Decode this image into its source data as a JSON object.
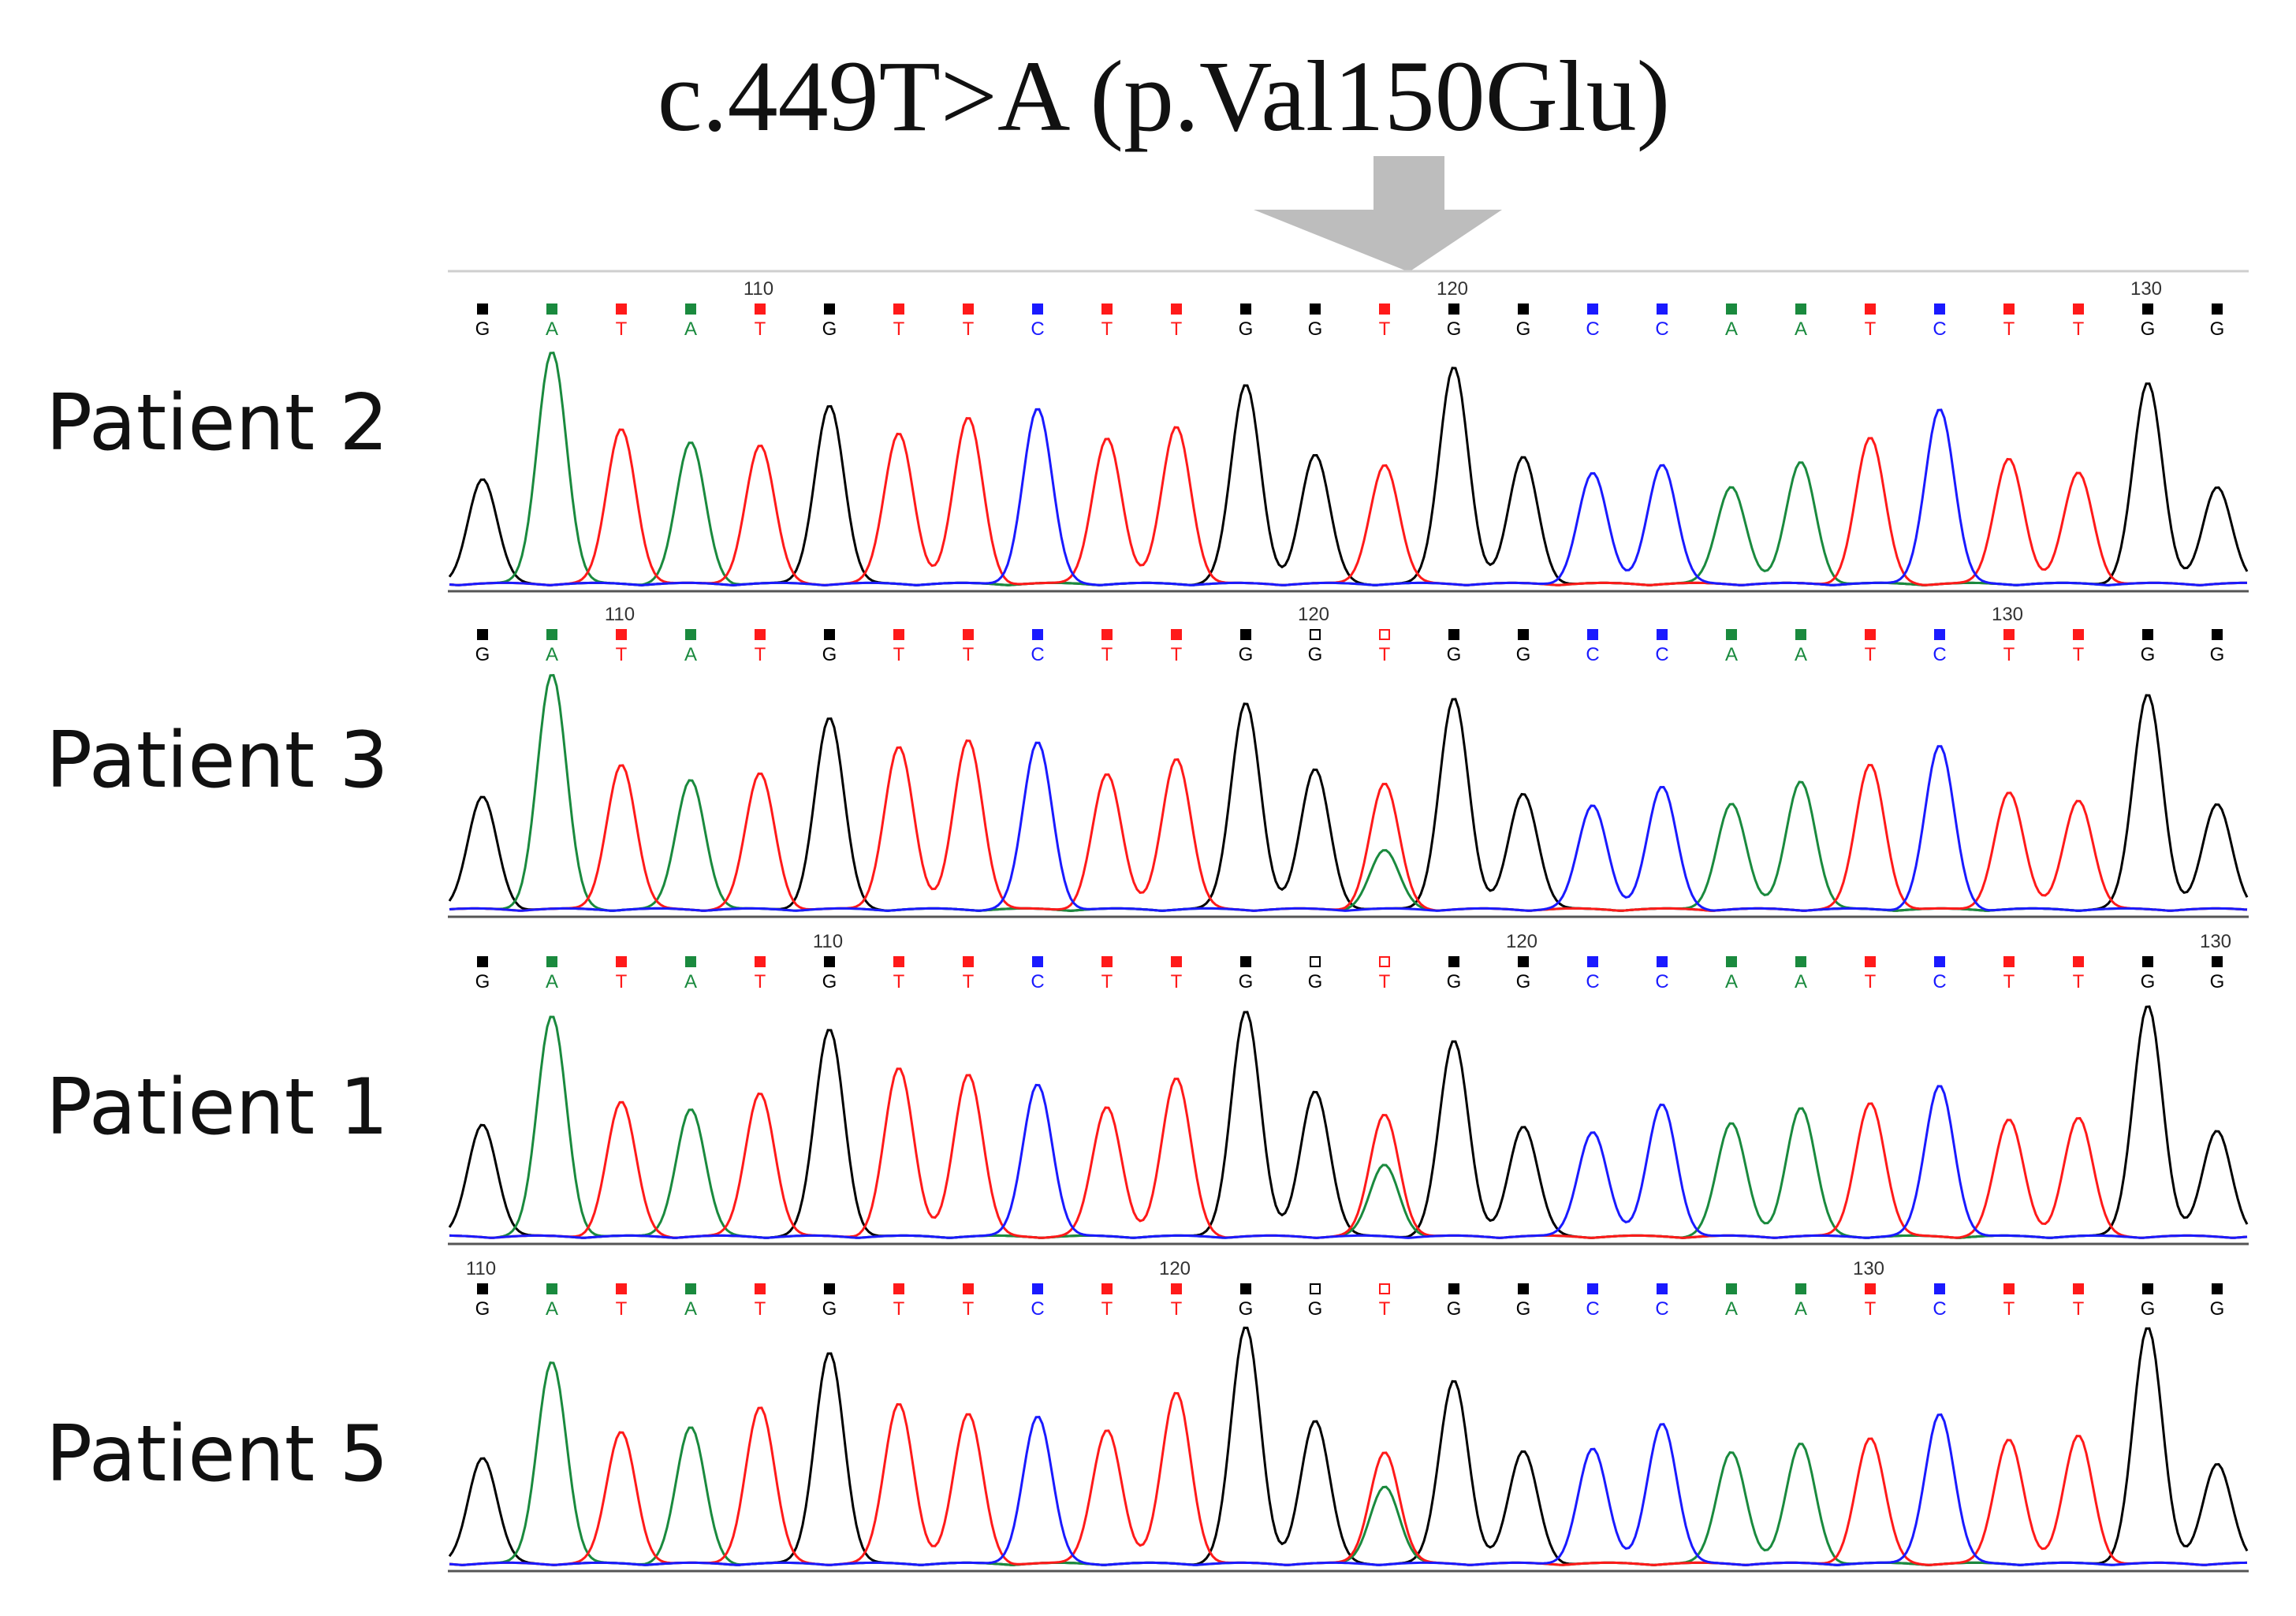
{
  "title": "c.449T>A (p.Val150Glu)",
  "sequence": [
    "G",
    "A",
    "T",
    "A",
    "T",
    "G",
    "T",
    "T",
    "C",
    "T",
    "T",
    "G",
    "G",
    "T",
    "G",
    "G",
    "C",
    "C",
    "A",
    "A",
    "T",
    "C",
    "T",
    "T",
    "G",
    "G"
  ],
  "base_colors": {
    "A": "#1a8a3e",
    "C": "#1a1aff",
    "G": "#000000",
    "T": "#ff1a1a"
  },
  "variant_position_index": 13,
  "arrow_color": "#bdbdbd",
  "panels": [
    {
      "label": "Patient 2",
      "position_labels": [
        {
          "text": "110",
          "base_index": 4
        },
        {
          "text": "120",
          "base_index": 14
        },
        {
          "text": "130",
          "base_index": 24
        }
      ],
      "secondary_peak": 0
    },
    {
      "label": "Patient 3",
      "position_labels": [
        {
          "text": "110",
          "base_index": 2
        },
        {
          "text": "120",
          "base_index": 12
        },
        {
          "text": "130",
          "base_index": 22
        }
      ],
      "secondary_peak": 0.45
    },
    {
      "label": "Patient 1",
      "position_labels": [
        {
          "text": "110",
          "base_index": 5
        },
        {
          "text": "120",
          "base_index": 15
        },
        {
          "text": "130",
          "base_index": 25
        }
      ],
      "secondary_peak": 0.55
    },
    {
      "label": "Patient 5",
      "position_labels": [
        {
          "text": "110",
          "base_index": 0
        },
        {
          "text": "120",
          "base_index": 10
        },
        {
          "text": "130",
          "base_index": 20
        }
      ],
      "secondary_peak": 0.6
    }
  ]
}
